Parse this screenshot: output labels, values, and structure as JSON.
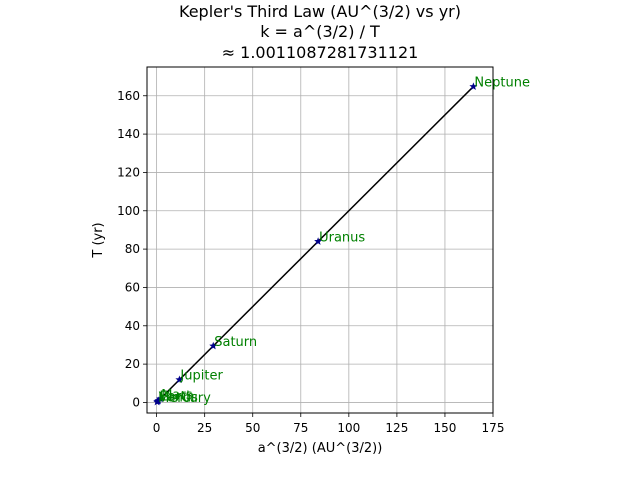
{
  "chart_data": {
    "type": "scatter",
    "title_lines": [
      "Kepler's Third Law (AU^(3/2) vs yr)",
      "k = a^(3/2) / T",
      "≈ 1.0011087281731121"
    ],
    "xlabel": "a^(3/2) (AU^(3/2))",
    "ylabel": "T (yr)",
    "xlim": [
      -5,
      175
    ],
    "ylim": [
      -5.5,
      175
    ],
    "xticks": [
      0,
      25,
      50,
      75,
      100,
      125,
      150,
      175
    ],
    "yticks": [
      0,
      20,
      40,
      60,
      80,
      100,
      120,
      140,
      160
    ],
    "grid": true,
    "points": [
      {
        "label": "Mercury",
        "x": 0.24,
        "y": 0.24
      },
      {
        "label": "Venus",
        "x": 0.62,
        "y": 0.62
      },
      {
        "label": "Earth",
        "x": 1.0,
        "y": 1.0
      },
      {
        "label": "Mars",
        "x": 1.88,
        "y": 1.88
      },
      {
        "label": "Jupiter",
        "x": 11.86,
        "y": 11.86
      },
      {
        "label": "Saturn",
        "x": 29.46,
        "y": 29.46
      },
      {
        "label": "Uranus",
        "x": 84.01,
        "y": 84.01
      },
      {
        "label": "Neptune",
        "x": 164.8,
        "y": 164.8
      }
    ],
    "fit_line": {
      "x": [
        0.24,
        164.8
      ],
      "y": [
        0.24,
        164.8
      ]
    },
    "colors": {
      "marker": "#00008b",
      "label": "#008000",
      "line": "#000000",
      "grid": "#b0b0b0"
    }
  }
}
